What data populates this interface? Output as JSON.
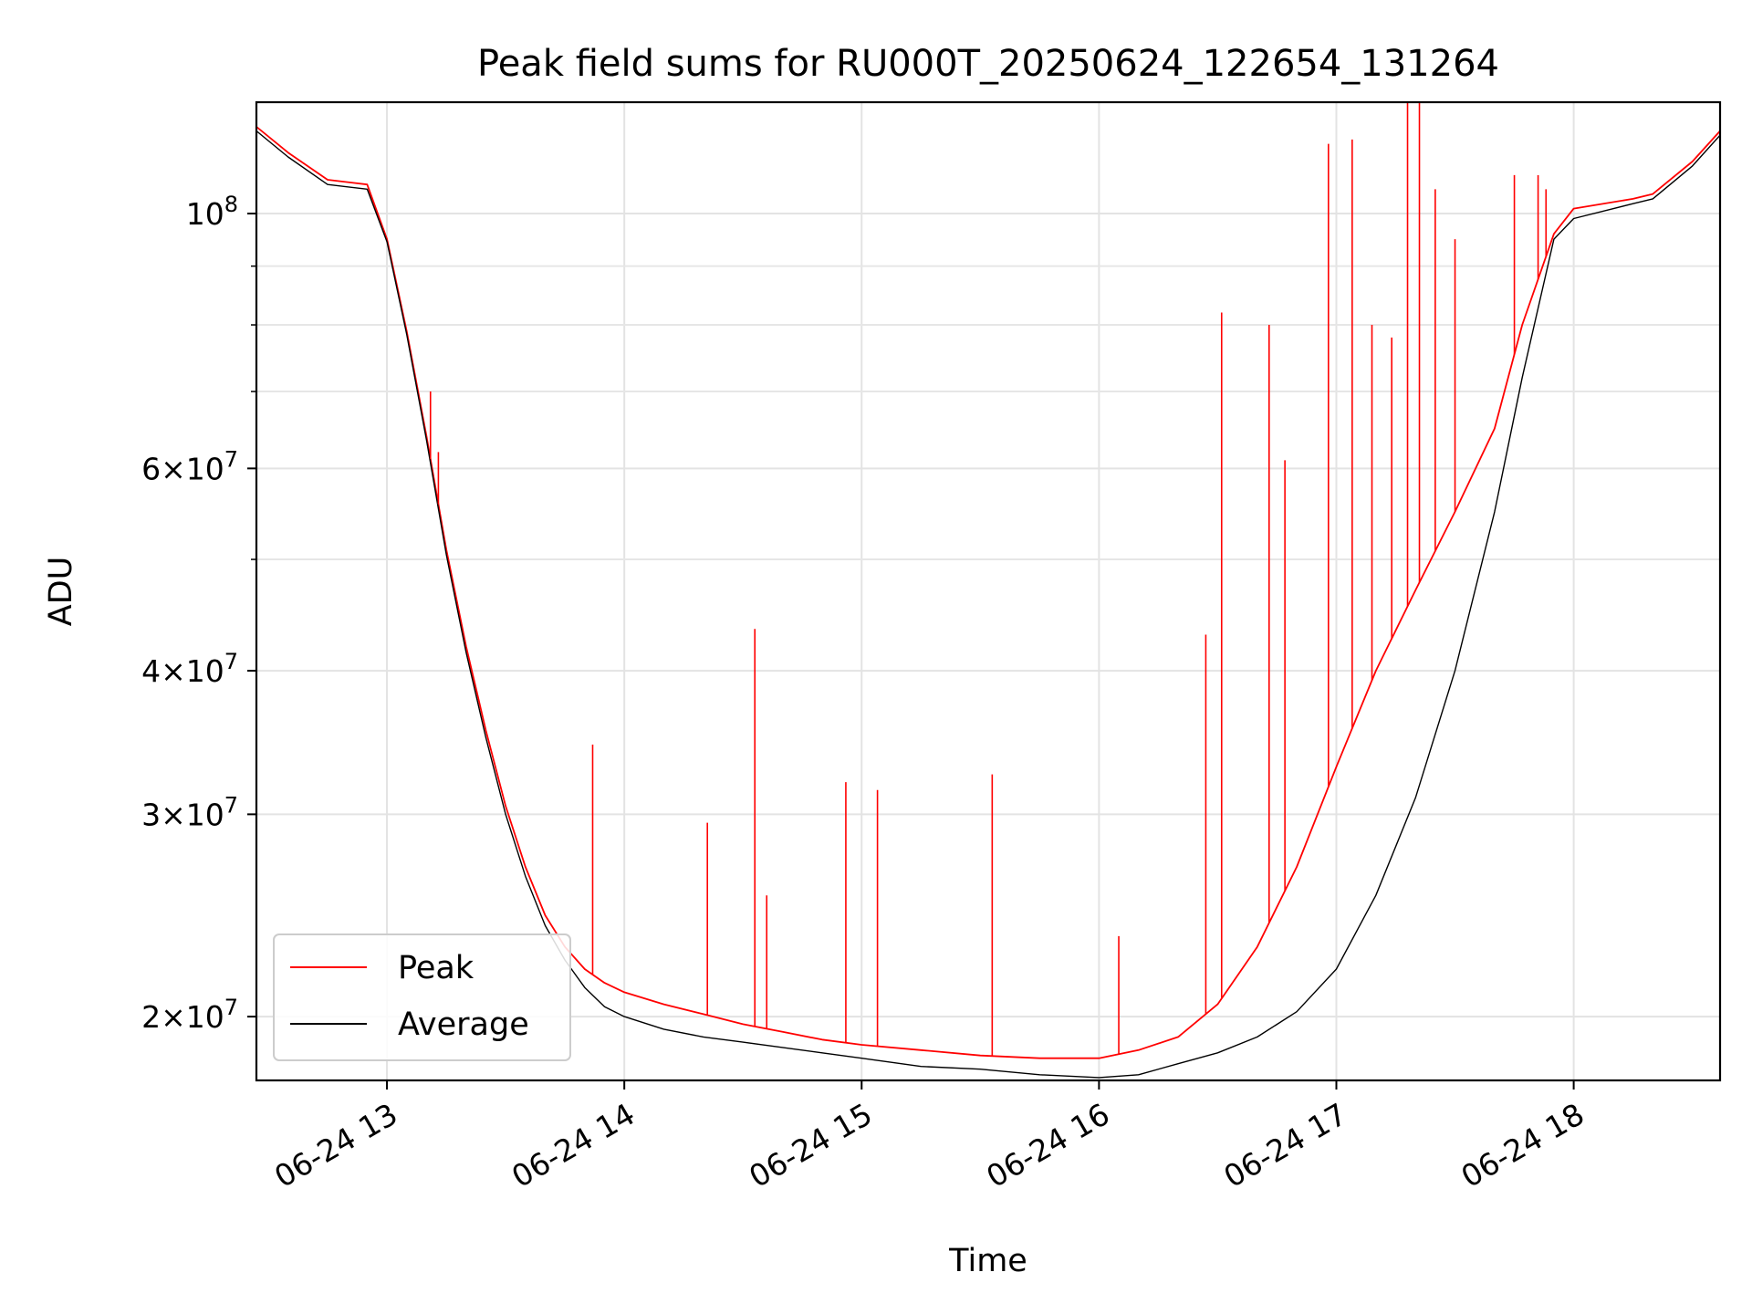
{
  "chart_data": {
    "type": "line",
    "title": "Peak field sums for RU000T_20250624_122654_131264",
    "xlabel": "Time",
    "ylabel": "ADU",
    "y_scale": "log",
    "ylim": [
      17600000,
      125000000
    ],
    "xlim": [
      "2025-06-24 12:27",
      "2025-06-24 18:37"
    ],
    "grid": true,
    "legend_position": "lower-left",
    "x_ticks": [
      {
        "value": "2025-06-24 13:00",
        "label": "06-24 13"
      },
      {
        "value": "2025-06-24 14:00",
        "label": "06-24 14"
      },
      {
        "value": "2025-06-24 15:00",
        "label": "06-24 15"
      },
      {
        "value": "2025-06-24 16:00",
        "label": "06-24 16"
      },
      {
        "value": "2025-06-24 17:00",
        "label": "06-24 17"
      },
      {
        "value": "2025-06-24 18:00",
        "label": "06-24 18"
      }
    ],
    "y_ticks": [
      {
        "value": 100000000,
        "label": "10",
        "sup": "8"
      },
      {
        "value": 60000000,
        "label": "6×10",
        "sup": "7"
      },
      {
        "value": 40000000,
        "label": "4×10",
        "sup": "7"
      },
      {
        "value": 30000000,
        "label": "3×10",
        "sup": "7"
      },
      {
        "value": 20000000,
        "label": "2×10",
        "sup": "7"
      }
    ],
    "y_minor_ticks": [
      90000000,
      80000000,
      70000000,
      50000000
    ],
    "series": [
      {
        "name": "Peak",
        "color": "#ff0000",
        "x": [
          "2025-06-24 12:27",
          "2025-06-24 12:35",
          "2025-06-24 12:45",
          "2025-06-24 12:55",
          "2025-06-24 13:00",
          "2025-06-24 13:05",
          "2025-06-24 13:10",
          "2025-06-24 13:15",
          "2025-06-24 13:20",
          "2025-06-24 13:25",
          "2025-06-24 13:30",
          "2025-06-24 13:35",
          "2025-06-24 13:40",
          "2025-06-24 13:45",
          "2025-06-24 13:50",
          "2025-06-24 13:55",
          "2025-06-24 14:00",
          "2025-06-24 14:10",
          "2025-06-24 14:20",
          "2025-06-24 14:30",
          "2025-06-24 14:40",
          "2025-06-24 14:50",
          "2025-06-24 15:00",
          "2025-06-24 15:15",
          "2025-06-24 15:30",
          "2025-06-24 15:45",
          "2025-06-24 16:00",
          "2025-06-24 16:10",
          "2025-06-24 16:20",
          "2025-06-24 16:30",
          "2025-06-24 16:40",
          "2025-06-24 16:50",
          "2025-06-24 17:00",
          "2025-06-24 17:10",
          "2025-06-24 17:20",
          "2025-06-24 17:30",
          "2025-06-24 17:40",
          "2025-06-24 17:47",
          "2025-06-24 17:55",
          "2025-06-24 18:00",
          "2025-06-24 18:15",
          "2025-06-24 18:20",
          "2025-06-24 18:30",
          "2025-06-24 18:37"
        ],
        "y": [
          119000000,
          113000000,
          107000000,
          106000000,
          95000000,
          79000000,
          64000000,
          51000000,
          42000000,
          35500000,
          30500000,
          27000000,
          24500000,
          23000000,
          22000000,
          21400000,
          21000000,
          20500000,
          20100000,
          19700000,
          19400000,
          19100000,
          18900000,
          18700000,
          18500000,
          18400000,
          18400000,
          18700000,
          19200000,
          20500000,
          23000000,
          27000000,
          33000000,
          40000000,
          47000000,
          55000000,
          65000000,
          80000000,
          96000000,
          101000000,
          103000000,
          104000000,
          111000000,
          118000000
        ]
      },
      {
        "name": "Average",
        "color": "#000000",
        "x": [
          "2025-06-24 12:27",
          "2025-06-24 12:35",
          "2025-06-24 12:45",
          "2025-06-24 12:55",
          "2025-06-24 13:00",
          "2025-06-24 13:05",
          "2025-06-24 13:10",
          "2025-06-24 13:15",
          "2025-06-24 13:20",
          "2025-06-24 13:25",
          "2025-06-24 13:30",
          "2025-06-24 13:35",
          "2025-06-24 13:40",
          "2025-06-24 13:45",
          "2025-06-24 13:50",
          "2025-06-24 13:55",
          "2025-06-24 14:00",
          "2025-06-24 14:10",
          "2025-06-24 14:20",
          "2025-06-24 14:30",
          "2025-06-24 14:40",
          "2025-06-24 14:50",
          "2025-06-24 15:00",
          "2025-06-24 15:15",
          "2025-06-24 15:30",
          "2025-06-24 15:45",
          "2025-06-24 16:00",
          "2025-06-24 16:10",
          "2025-06-24 16:20",
          "2025-06-24 16:30",
          "2025-06-24 16:40",
          "2025-06-24 16:50",
          "2025-06-24 17:00",
          "2025-06-24 17:10",
          "2025-06-24 17:20",
          "2025-06-24 17:30",
          "2025-06-24 17:40",
          "2025-06-24 17:47",
          "2025-06-24 17:55",
          "2025-06-24 18:00",
          "2025-06-24 18:15",
          "2025-06-24 18:20",
          "2025-06-24 18:30",
          "2025-06-24 18:37"
        ],
        "y": [
          118000000,
          112000000,
          106000000,
          105000000,
          94500000,
          78500000,
          63500000,
          50500000,
          41500000,
          35000000,
          30000000,
          26500000,
          24000000,
          22400000,
          21200000,
          20400000,
          20000000,
          19500000,
          19200000,
          19000000,
          18800000,
          18600000,
          18400000,
          18100000,
          18000000,
          17800000,
          17700000,
          17800000,
          18200000,
          18600000,
          19200000,
          20200000,
          22000000,
          25500000,
          31000000,
          40000000,
          55000000,
          72000000,
          95000000,
          99000000,
          102000000,
          103000000,
          110000000,
          117000000
        ]
      }
    ],
    "peak_spikes": [
      {
        "x": "2025-06-24 13:11",
        "y": 70000000
      },
      {
        "x": "2025-06-24 13:13",
        "y": 62000000
      },
      {
        "x": "2025-06-24 13:52",
        "y": 34500000
      },
      {
        "x": "2025-06-24 14:21",
        "y": 29500000
      },
      {
        "x": "2025-06-24 14:33",
        "y": 43500000
      },
      {
        "x": "2025-06-24 14:36",
        "y": 25500000
      },
      {
        "x": "2025-06-24 14:56",
        "y": 32000000
      },
      {
        "x": "2025-06-24 15:04",
        "y": 31500000
      },
      {
        "x": "2025-06-24 15:33",
        "y": 32500000
      },
      {
        "x": "2025-06-24 16:05",
        "y": 23500000
      },
      {
        "x": "2025-06-24 16:27",
        "y": 43000000
      },
      {
        "x": "2025-06-24 16:31",
        "y": 82000000
      },
      {
        "x": "2025-06-24 16:43",
        "y": 80000000
      },
      {
        "x": "2025-06-24 16:47",
        "y": 61000000
      },
      {
        "x": "2025-06-24 16:58",
        "y": 115000000
      },
      {
        "x": "2025-06-24 17:04",
        "y": 116000000
      },
      {
        "x": "2025-06-24 17:09",
        "y": 80000000
      },
      {
        "x": "2025-06-24 17:14",
        "y": 78000000
      },
      {
        "x": "2025-06-24 17:18",
        "y": 150000000
      },
      {
        "x": "2025-06-24 17:21",
        "y": 136000000
      },
      {
        "x": "2025-06-24 17:25",
        "y": 105000000
      },
      {
        "x": "2025-06-24 17:30",
        "y": 95000000
      },
      {
        "x": "2025-06-24 17:45",
        "y": 108000000
      },
      {
        "x": "2025-06-24 17:51",
        "y": 108000000
      },
      {
        "x": "2025-06-24 17:53",
        "y": 105000000
      }
    ]
  }
}
